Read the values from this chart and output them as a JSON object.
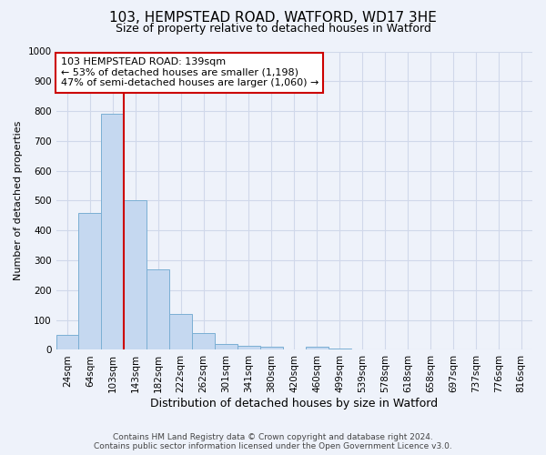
{
  "title1": "103, HEMPSTEAD ROAD, WATFORD, WD17 3HE",
  "title2": "Size of property relative to detached houses in Watford",
  "xlabel": "Distribution of detached houses by size in Watford",
  "ylabel": "Number of detached properties",
  "categories": [
    "24sqm",
    "64sqm",
    "103sqm",
    "143sqm",
    "182sqm",
    "222sqm",
    "262sqm",
    "301sqm",
    "341sqm",
    "380sqm",
    "420sqm",
    "460sqm",
    "499sqm",
    "539sqm",
    "578sqm",
    "618sqm",
    "658sqm",
    "697sqm",
    "737sqm",
    "776sqm",
    "816sqm"
  ],
  "values": [
    50,
    460,
    790,
    500,
    270,
    120,
    55,
    20,
    15,
    10,
    0,
    10,
    5,
    0,
    0,
    0,
    0,
    0,
    0,
    0,
    0
  ],
  "bar_color": "#c5d8f0",
  "bar_edge_color": "#7bafd4",
  "vline_x": 2.5,
  "vline_color": "#cc0000",
  "annotation_text": "103 HEMPSTEAD ROAD: 139sqm\n← 53% of detached houses are smaller (1,198)\n47% of semi-detached houses are larger (1,060) →",
  "annotation_box_facecolor": "#ffffff",
  "annotation_box_edgecolor": "#cc0000",
  "ylim": [
    0,
    1000
  ],
  "yticks": [
    0,
    100,
    200,
    300,
    400,
    500,
    600,
    700,
    800,
    900,
    1000
  ],
  "grid_color": "#d0d8ea",
  "background_color": "#eef2fa",
  "footer1": "Contains HM Land Registry data © Crown copyright and database right 2024.",
  "footer2": "Contains public sector information licensed under the Open Government Licence v3.0.",
  "title1_fontsize": 11,
  "title2_fontsize": 9,
  "xlabel_fontsize": 9,
  "ylabel_fontsize": 8,
  "tick_fontsize": 7.5,
  "footer_fontsize": 6.5,
  "annotation_fontsize": 8
}
